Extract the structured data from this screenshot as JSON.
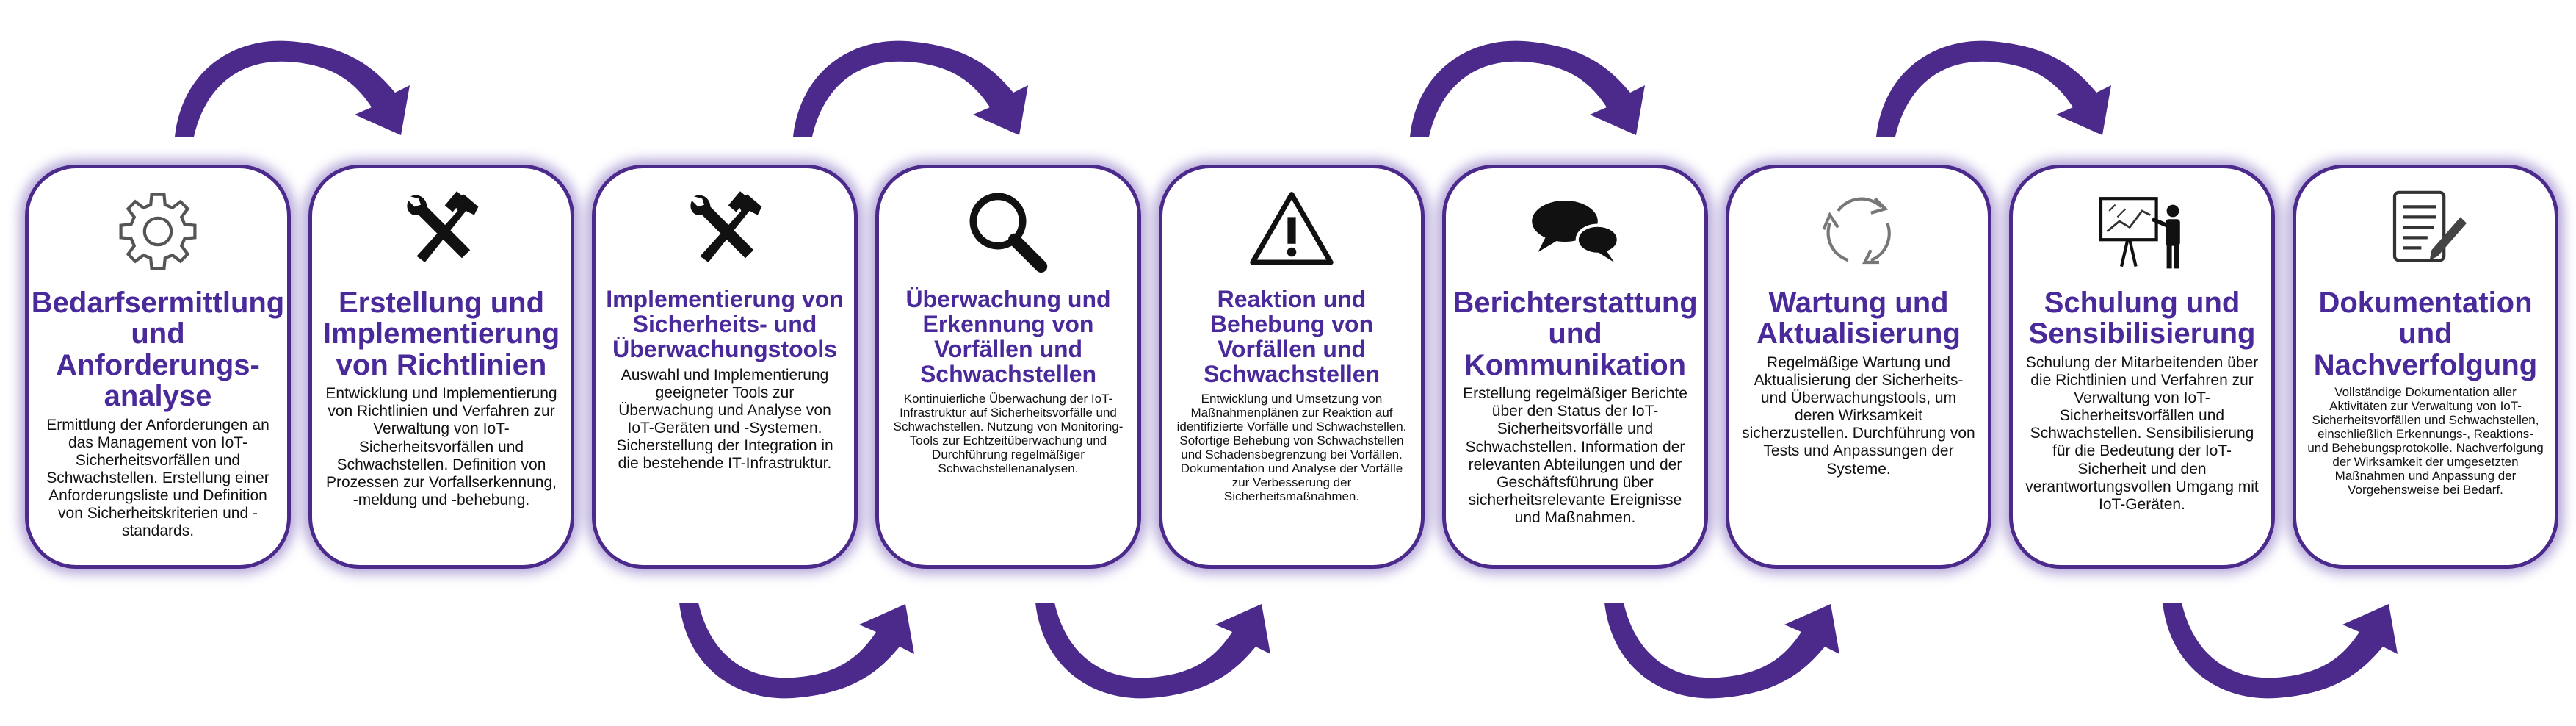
{
  "diagram": {
    "steps": [
      {
        "icon": "gear-icon",
        "title": "Bedarfsermittlung und Anforderungs- analyse",
        "text": "Ermittlung der Anforderungen an das Management von IoT-Sicherheitsvorfällen und Schwachstellen. Erstellung einer Anforderungsliste und Definition von Sicherheitskriterien und -standards."
      },
      {
        "icon": "hammer-wrench-icon",
        "title": "Erstellung und Implementierung von Richtlinien",
        "text": "Entwicklung und Implementierung von Richtlinien und Verfahren zur Verwaltung von IoT-Sicherheitsvorfällen und Schwachstellen. Definition von Prozessen zur Vorfallserkennung, -meldung und -behebung."
      },
      {
        "icon": "hammer-wrench-icon",
        "title": "Implementierung von Sicherheits- und Überwachungstools",
        "text": "Auswahl und Implementierung geeigneter Tools zur Überwachung und Analyse von IoT-Geräten und -Systemen. Sicherstellung der Integration in die bestehende IT-Infrastruktur."
      },
      {
        "icon": "magnifier-icon",
        "title": "Überwachung und Erkennung von Vorfällen und Schwachstellen",
        "text": "Kontinuierliche Überwachung der IoT-Infrastruktur auf Sicherheitsvorfälle und Schwachstellen. Nutzung von Monitoring-Tools zur Echtzeitüberwachung und Durchführung regelmäßiger Schwachstellenanalysen."
      },
      {
        "icon": "warning-icon",
        "title": "Reaktion und Behebung von Vorfällen und Schwachstellen",
        "text": "Entwicklung und Umsetzung von Maßnahmenplänen zur Reaktion auf identifizierte Vorfälle und Schwachstellen. Sofortige Behebung von Schwachstellen und Schadensbegrenzung bei Vorfällen. Dokumentation und Analyse der Vorfälle zur Verbesserung der Sicherheitsmaßnahmen."
      },
      {
        "icon": "speech-bubbles-icon",
        "title": "Berichterstattung und Kommunikation",
        "text": "Erstellung regelmäßiger Berichte über den Status der IoT-Sicherheitsvorfälle und Schwachstellen. Information der relevanten Abteilungen und der Geschäftsführung über sicherheitsrelevante Ereignisse und Maßnahmen."
      },
      {
        "icon": "refresh-cycle-icon",
        "title": "Wartung und Aktualisierung",
        "text": "Regelmäßige Wartung und Aktualisierung der Sicherheits- und Überwachungstools, um deren Wirksamkeit sicherzustellen. Durchführung von Tests und Anpassungen der Systeme."
      },
      {
        "icon": "presentation-icon",
        "title": "Schulung und Sensibilisierung",
        "text": "Schulung der Mitarbeitenden über die Richtlinien und Verfahren zur Verwaltung von IoT-Sicherheitsvorfällen und Schwachstellen. Sensibilisierung für die Bedeutung der IoT-Sicherheit und den verantwortungsvollen Umgang mit IoT-Geräten."
      },
      {
        "icon": "document-pen-icon",
        "title": "Dokumentation und Nachverfolgung",
        "text": "Vollständige Dokumentation aller Aktivitäten zur Verwaltung von IoT-Sicherheitsvorfällen und Schwachstellen, einschließlich Erkennungs-, Reaktions- und Behebungsprotokolle. Nachverfolgung der Wirksamkeit der umgesetzten Maßnahmen und Anpassung der Vorgehensweise bei Bedarf."
      }
    ]
  },
  "colors": {
    "accent": "#4b2a8c",
    "title": "#4a2a9a",
    "arrow": "#4b2a8c",
    "text": "#111111"
  }
}
